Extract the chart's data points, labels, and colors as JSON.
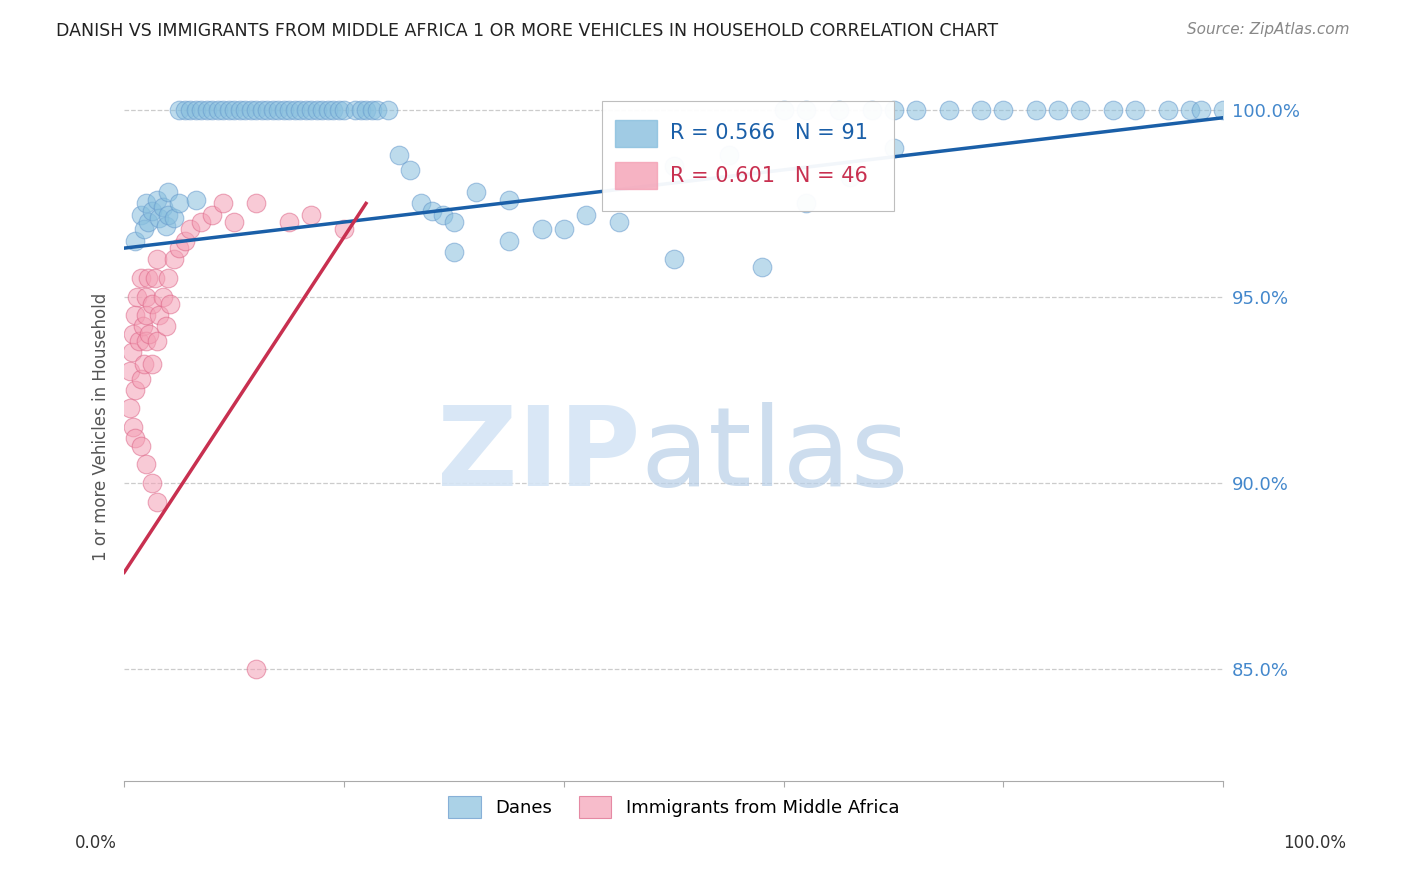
{
  "title": "DANISH VS IMMIGRANTS FROM MIDDLE AFRICA 1 OR MORE VEHICLES IN HOUSEHOLD CORRELATION CHART",
  "source": "Source: ZipAtlas.com",
  "ylabel": "1 or more Vehicles in Household",
  "legend_danes": "Danes",
  "legend_immigrants": "Immigrants from Middle Africa",
  "legend_r_danes": "R = 0.566",
  "legend_n_danes": "N = 91",
  "legend_r_immigrants": "R = 0.601",
  "legend_n_immigrants": "N = 46",
  "danes_color": "#88bfde",
  "immigrants_color": "#f4a0b5",
  "danes_line_color": "#1a5fa8",
  "immigrants_line_color": "#c83050",
  "xlim": [
    0.0,
    1.0
  ],
  "ylim": [
    0.82,
    1.01
  ],
  "yticks": [
    0.85,
    0.9,
    0.95,
    1.0
  ],
  "ytick_labels": [
    "85.0%",
    "90.0%",
    "95.0%",
    "100.0%"
  ],
  "background_color": "#ffffff",
  "grid_color": "#cccccc",
  "title_color": "#222222",
  "right_axis_color": "#4488cc",
  "watermark_color": "#d0dff0",
  "danes_x": [
    0.01,
    0.015,
    0.018,
    0.02,
    0.022,
    0.025,
    0.03,
    0.032,
    0.035,
    0.038,
    0.04,
    0.04,
    0.045,
    0.05,
    0.05,
    0.055,
    0.06,
    0.065,
    0.065,
    0.07,
    0.075,
    0.08,
    0.085,
    0.09,
    0.095,
    0.1,
    0.105,
    0.11,
    0.115,
    0.12,
    0.125,
    0.13,
    0.135,
    0.14,
    0.145,
    0.15,
    0.155,
    0.16,
    0.165,
    0.17,
    0.175,
    0.18,
    0.185,
    0.19,
    0.195,
    0.2,
    0.21,
    0.215,
    0.22,
    0.225,
    0.23,
    0.24,
    0.25,
    0.26,
    0.27,
    0.28,
    0.29,
    0.3,
    0.32,
    0.35,
    0.38,
    0.42,
    0.45,
    0.5,
    0.55,
    0.6,
    0.62,
    0.65,
    0.68,
    0.7,
    0.72,
    0.75,
    0.78,
    0.8,
    0.83,
    0.85,
    0.87,
    0.9,
    0.92,
    0.95,
    0.97,
    0.98,
    1.0,
    0.3,
    0.35,
    0.4,
    0.5,
    0.58,
    0.62,
    0.66,
    0.7
  ],
  "danes_y": [
    0.965,
    0.972,
    0.968,
    0.975,
    0.97,
    0.973,
    0.976,
    0.971,
    0.974,
    0.969,
    0.972,
    0.978,
    0.971,
    1.0,
    0.975,
    1.0,
    1.0,
    1.0,
    0.976,
    1.0,
    1.0,
    1.0,
    1.0,
    1.0,
    1.0,
    1.0,
    1.0,
    1.0,
    1.0,
    1.0,
    1.0,
    1.0,
    1.0,
    1.0,
    1.0,
    1.0,
    1.0,
    1.0,
    1.0,
    1.0,
    1.0,
    1.0,
    1.0,
    1.0,
    1.0,
    1.0,
    1.0,
    1.0,
    1.0,
    1.0,
    1.0,
    1.0,
    0.988,
    0.984,
    0.975,
    0.973,
    0.972,
    0.97,
    0.978,
    0.976,
    0.968,
    0.972,
    0.97,
    0.985,
    0.988,
    1.0,
    1.0,
    1.0,
    1.0,
    1.0,
    1.0,
    1.0,
    1.0,
    1.0,
    1.0,
    1.0,
    1.0,
    1.0,
    1.0,
    1.0,
    1.0,
    1.0,
    1.0,
    0.962,
    0.965,
    0.968,
    0.96,
    0.958,
    0.975,
    0.982,
    0.99
  ],
  "immigrants_x": [
    0.005,
    0.007,
    0.008,
    0.01,
    0.01,
    0.012,
    0.013,
    0.015,
    0.015,
    0.017,
    0.018,
    0.02,
    0.02,
    0.02,
    0.022,
    0.023,
    0.025,
    0.025,
    0.028,
    0.03,
    0.03,
    0.032,
    0.035,
    0.038,
    0.04,
    0.042,
    0.045,
    0.05,
    0.055,
    0.06,
    0.07,
    0.08,
    0.09,
    0.1,
    0.12,
    0.15,
    0.17,
    0.2,
    0.005,
    0.008,
    0.01,
    0.015,
    0.02,
    0.025,
    0.03,
    0.12
  ],
  "immigrants_y": [
    0.93,
    0.935,
    0.94,
    0.945,
    0.925,
    0.95,
    0.938,
    0.928,
    0.955,
    0.942,
    0.932,
    0.938,
    0.945,
    0.95,
    0.955,
    0.94,
    0.948,
    0.932,
    0.955,
    0.96,
    0.938,
    0.945,
    0.95,
    0.942,
    0.955,
    0.948,
    0.96,
    0.963,
    0.965,
    0.968,
    0.97,
    0.972,
    0.975,
    0.97,
    0.975,
    0.97,
    0.972,
    0.968,
    0.92,
    0.915,
    0.912,
    0.91,
    0.905,
    0.9,
    0.895,
    0.85
  ],
  "danes_line_x0": 0.0,
  "danes_line_y0": 0.963,
  "danes_line_x1": 1.0,
  "danes_line_y1": 0.998,
  "imm_line_x0": 0.0,
  "imm_line_y0": 0.876,
  "imm_line_x1": 0.22,
  "imm_line_y1": 0.975
}
